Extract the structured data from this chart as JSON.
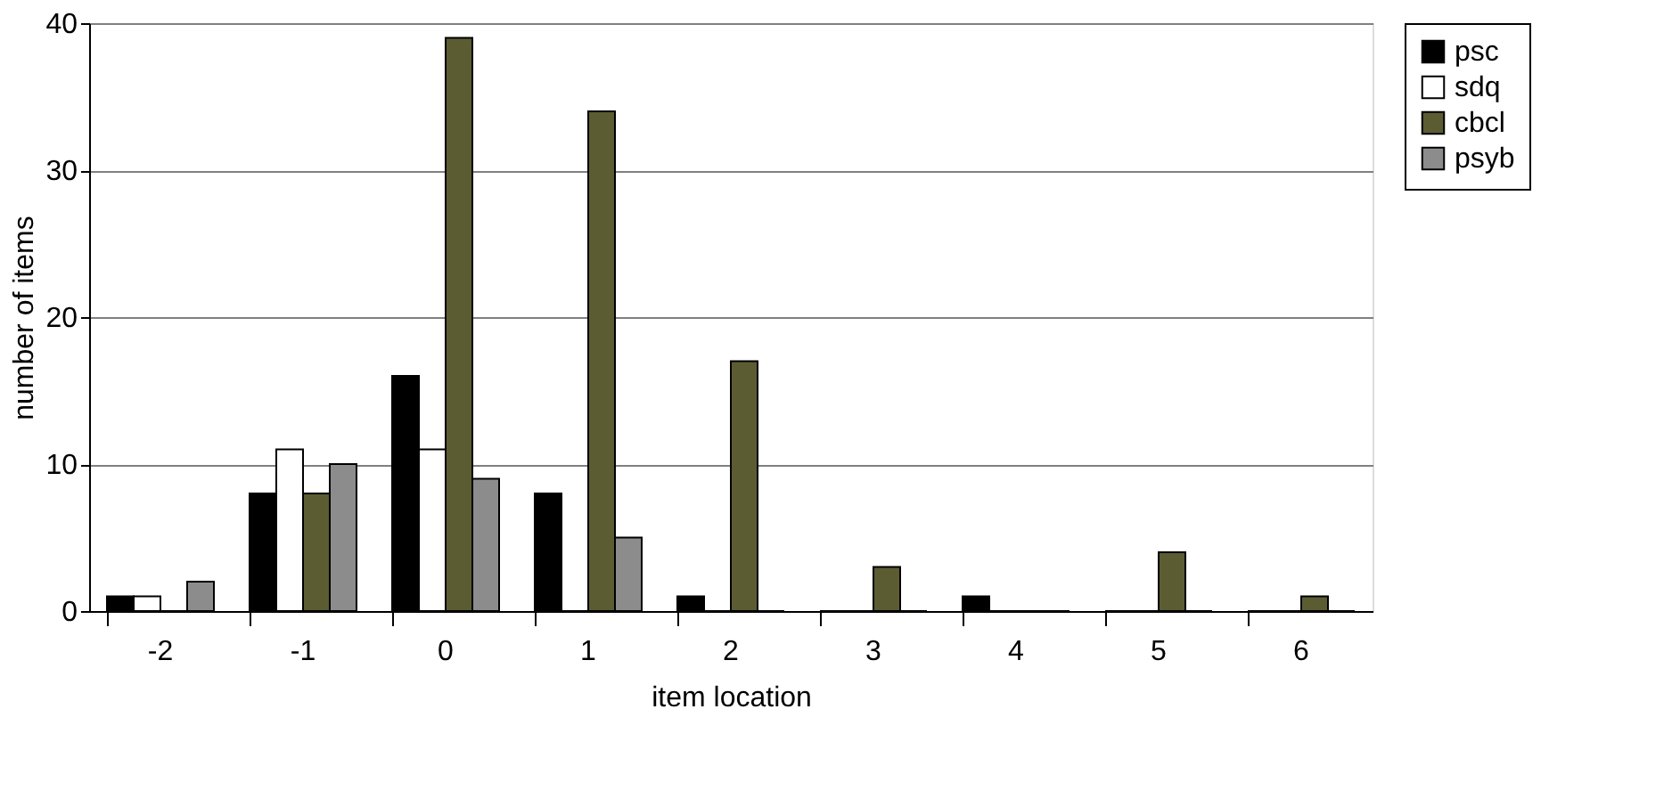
{
  "chart_data": {
    "type": "bar",
    "xlabel": "item location",
    "ylabel": "number of items",
    "categories": [
      "-2",
      "-1",
      "0",
      "1",
      "2",
      "3",
      "4",
      "5",
      "6"
    ],
    "series": [
      {
        "name": "psc",
        "color": "#000000",
        "values": [
          1,
          8,
          16,
          8,
          1,
          0,
          1,
          0,
          0
        ]
      },
      {
        "name": "sdq",
        "color": "#ffffff",
        "values": [
          1,
          11,
          11,
          0,
          0,
          0,
          0,
          0,
          0
        ]
      },
      {
        "name": "cbcl",
        "color": "#5c5c33",
        "values": [
          0,
          8,
          39,
          34,
          17,
          3,
          0,
          4,
          1
        ]
      },
      {
        "name": "psyb",
        "color": "#8c8c8c",
        "values": [
          2,
          10,
          9,
          5,
          0,
          0,
          0,
          0,
          0
        ]
      }
    ],
    "ylim": [
      0,
      40
    ],
    "yticks": [
      0,
      10,
      20,
      30,
      40
    ],
    "grid": "y",
    "legend": "right"
  }
}
